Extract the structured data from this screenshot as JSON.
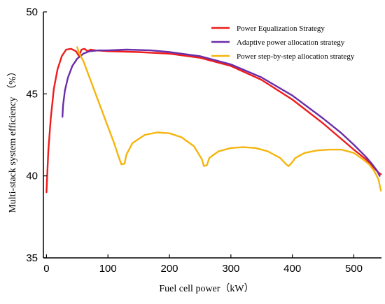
{
  "chart_data": {
    "type": "line",
    "title": "",
    "xlabel": "Fuel cell power（kW）",
    "ylabel": "Multi-stack system efficiency （%）",
    "xlim": [
      -5,
      545
    ],
    "ylim": [
      35,
      50
    ],
    "xticks": [
      0,
      100,
      200,
      300,
      400,
      500
    ],
    "yticks": [
      35,
      40,
      45,
      50
    ],
    "grid": false,
    "legend_position": "top-right",
    "series": [
      {
        "name": "Power Equalization Strategy",
        "color": "#ee1c1c",
        "points": [
          [
            0,
            39.0
          ],
          [
            3,
            41.5
          ],
          [
            7,
            43.5
          ],
          [
            12,
            45.3
          ],
          [
            18,
            46.5
          ],
          [
            25,
            47.3
          ],
          [
            32,
            47.7
          ],
          [
            40,
            47.75
          ],
          [
            48,
            47.6
          ],
          [
            53,
            47.3
          ],
          [
            57,
            47.7
          ],
          [
            62,
            47.75
          ],
          [
            67,
            47.6
          ],
          [
            72,
            47.7
          ],
          [
            80,
            47.65
          ],
          [
            100,
            47.6
          ],
          [
            150,
            47.55
          ],
          [
            200,
            47.45
          ],
          [
            250,
            47.2
          ],
          [
            300,
            46.7
          ],
          [
            350,
            45.85
          ],
          [
            400,
            44.65
          ],
          [
            450,
            43.2
          ],
          [
            500,
            41.6
          ],
          [
            520,
            41.0
          ],
          [
            530,
            40.6
          ],
          [
            540,
            40.2
          ],
          [
            544,
            40.1
          ]
        ]
      },
      {
        "name": "Adaptive power allocation strategy",
        "color": "#6a2da8",
        "points": [
          [
            26,
            43.6
          ],
          [
            27,
            44.3
          ],
          [
            30,
            45.2
          ],
          [
            35,
            46.0
          ],
          [
            42,
            46.7
          ],
          [
            50,
            47.15
          ],
          [
            60,
            47.45
          ],
          [
            70,
            47.6
          ],
          [
            85,
            47.65
          ],
          [
            100,
            47.65
          ],
          [
            130,
            47.7
          ],
          [
            170,
            47.65
          ],
          [
            200,
            47.55
          ],
          [
            250,
            47.3
          ],
          [
            300,
            46.8
          ],
          [
            350,
            46.0
          ],
          [
            400,
            44.9
          ],
          [
            450,
            43.5
          ],
          [
            480,
            42.6
          ],
          [
            500,
            41.9
          ],
          [
            520,
            41.15
          ],
          [
            530,
            40.7
          ],
          [
            538,
            40.3
          ],
          [
            542,
            40.0
          ]
        ]
      },
      {
        "name": "Power step-by-step allocation strategy",
        "color": "#f5b50e",
        "points": [
          [
            50,
            47.85
          ],
          [
            53,
            47.5
          ],
          [
            60,
            47.0
          ],
          [
            70,
            46.0
          ],
          [
            80,
            45.0
          ],
          [
            90,
            44.0
          ],
          [
            100,
            43.0
          ],
          [
            110,
            42.0
          ],
          [
            118,
            41.1
          ],
          [
            122,
            40.7
          ],
          [
            127,
            40.75
          ],
          [
            130,
            41.3
          ],
          [
            140,
            42.0
          ],
          [
            160,
            42.5
          ],
          [
            180,
            42.65
          ],
          [
            200,
            42.6
          ],
          [
            220,
            42.35
          ],
          [
            240,
            41.8
          ],
          [
            253,
            41.0
          ],
          [
            256,
            40.6
          ],
          [
            261,
            40.65
          ],
          [
            265,
            41.1
          ],
          [
            280,
            41.5
          ],
          [
            300,
            41.7
          ],
          [
            320,
            41.75
          ],
          [
            340,
            41.7
          ],
          [
            360,
            41.5
          ],
          [
            380,
            41.1
          ],
          [
            390,
            40.7
          ],
          [
            394,
            40.6
          ],
          [
            398,
            40.75
          ],
          [
            405,
            41.1
          ],
          [
            420,
            41.4
          ],
          [
            440,
            41.55
          ],
          [
            460,
            41.6
          ],
          [
            480,
            41.6
          ],
          [
            500,
            41.4
          ],
          [
            515,
            41.0
          ],
          [
            525,
            40.7
          ],
          [
            533,
            40.3
          ],
          [
            540,
            39.8
          ],
          [
            544,
            39.1
          ]
        ]
      }
    ]
  }
}
